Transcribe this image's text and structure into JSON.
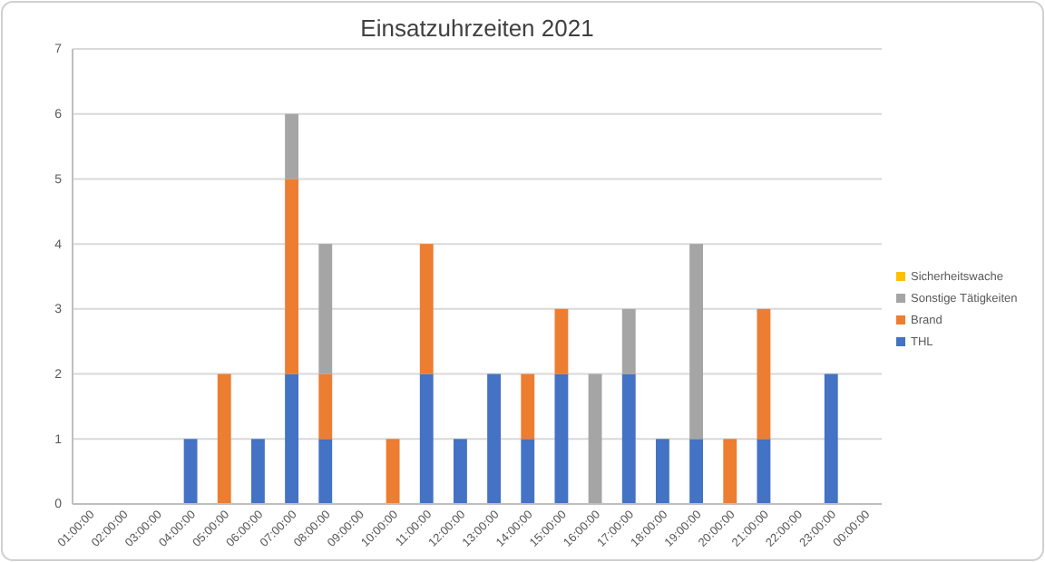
{
  "chart_data": {
    "type": "bar",
    "title": "Einsatzuhrzeiten 2021",
    "stacked": true,
    "grid": "y",
    "legend": "right",
    "categories": [
      "01:00:00",
      "02:00:00",
      "03:00:00",
      "04:00:00",
      "05:00:00",
      "06:00:00",
      "07:00:00",
      "08:00:00",
      "09:00:00",
      "10:00:00",
      "11:00:00",
      "12:00:00",
      "13:00:00",
      "14:00:00",
      "15:00:00",
      "16:00:00",
      "17:00:00",
      "18:00:00",
      "19:00:00",
      "20:00:00",
      "21:00:00",
      "22:00:00",
      "23:00:00",
      "00:00:00"
    ],
    "ylim": [
      0,
      7
    ],
    "yticks": [
      0,
      1,
      2,
      3,
      4,
      5,
      6,
      7
    ],
    "series": [
      {
        "name": "THL",
        "color": "#4472c4",
        "values": [
          0,
          0,
          0,
          1,
          0,
          1,
          2,
          1,
          0,
          0,
          2,
          1,
          2,
          1,
          2,
          0,
          2,
          1,
          1,
          0,
          1,
          0,
          2,
          0
        ]
      },
      {
        "name": "Brand",
        "color": "#ed7d31",
        "values": [
          0,
          0,
          0,
          0,
          2,
          0,
          3,
          1,
          0,
          1,
          2,
          0,
          0,
          1,
          1,
          0,
          0,
          0,
          0,
          1,
          2,
          0,
          0,
          0
        ]
      },
      {
        "name": "Sonstige Tätigkeiten",
        "color": "#a5a5a5",
        "values": [
          0,
          0,
          0,
          0,
          0,
          0,
          1,
          2,
          0,
          0,
          0,
          0,
          0,
          0,
          0,
          2,
          1,
          0,
          3,
          0,
          0,
          0,
          0,
          0
        ]
      },
      {
        "name": "Sicherheitswache",
        "color": "#ffc000",
        "values": [
          0,
          0,
          0,
          0,
          0,
          0,
          0,
          0,
          0,
          0,
          0,
          0,
          0,
          0,
          0,
          0,
          0,
          0,
          0,
          0,
          0,
          0,
          0,
          0
        ]
      }
    ]
  }
}
